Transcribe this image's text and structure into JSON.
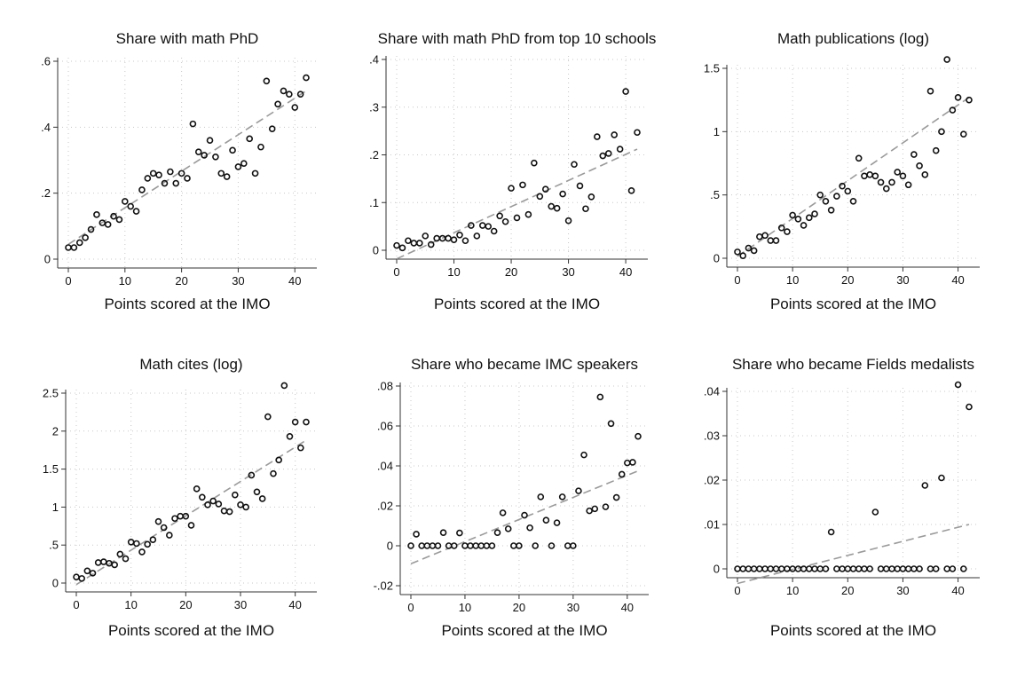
{
  "figure": {
    "colors": {
      "points": "#111111",
      "fit_line": "#9a9a9a",
      "grid": "#c8c8c8"
    }
  },
  "chart_data": [
    {
      "type": "scatter",
      "title": "Share with math PhD",
      "xlabel": "Points scored at the IMO",
      "ylabel": "",
      "xlim": [
        0,
        42
      ],
      "ylim": [
        0,
        0.6
      ],
      "xticks": [
        0,
        10,
        20,
        30,
        40
      ],
      "xtick_labels": [
        "0",
        "10",
        "20",
        "30",
        "40"
      ],
      "yticks": [
        0,
        0.2,
        0.4,
        0.6
      ],
      "ytick_labels": [
        "0",
        ".2",
        ".4",
        ".6"
      ],
      "grid": true,
      "x": [
        0,
        1,
        2,
        3,
        4,
        5,
        6,
        7,
        8,
        9,
        10,
        11,
        12,
        13,
        14,
        15,
        16,
        17,
        18,
        19,
        20,
        21,
        22,
        23,
        24,
        25,
        26,
        27,
        28,
        29,
        30,
        31,
        32,
        33,
        34,
        35,
        36,
        37,
        38,
        39,
        40,
        41,
        42
      ],
      "y": [
        0.035,
        0.035,
        0.05,
        0.065,
        0.09,
        0.135,
        0.11,
        0.105,
        0.13,
        0.12,
        0.175,
        0.16,
        0.145,
        0.21,
        0.245,
        0.26,
        0.255,
        0.23,
        0.265,
        0.23,
        0.26,
        0.245,
        0.41,
        0.325,
        0.315,
        0.36,
        0.31,
        0.26,
        0.25,
        0.33,
        0.28,
        0.29,
        0.365,
        0.26,
        0.34,
        0.54,
        0.395,
        0.47,
        0.51,
        0.5,
        0.46,
        0.5,
        0.55
      ],
      "fit": {
        "x": [
          0,
          42
        ],
        "y": [
          0.045,
          0.51
        ]
      }
    },
    {
      "type": "scatter",
      "title": "Share with math PhD from top 10 schools",
      "xlabel": "Points scored at the IMO",
      "ylabel": "",
      "xlim": [
        0,
        42
      ],
      "ylim": [
        0,
        0.4
      ],
      "xticks": [
        0,
        10,
        20,
        30,
        40
      ],
      "xtick_labels": [
        "0",
        "10",
        "20",
        "30",
        "40"
      ],
      "yticks": [
        0,
        0.1,
        0.2,
        0.3,
        0.4
      ],
      "ytick_labels": [
        "0",
        ".1",
        ".2",
        ".3",
        ".4"
      ],
      "grid": true,
      "x": [
        0,
        1,
        2,
        3,
        4,
        5,
        6,
        7,
        8,
        9,
        10,
        11,
        12,
        13,
        14,
        15,
        16,
        17,
        18,
        19,
        20,
        21,
        22,
        23,
        24,
        25,
        26,
        27,
        28,
        29,
        30,
        31,
        32,
        33,
        34,
        35,
        36,
        37,
        38,
        39,
        40,
        41,
        42
      ],
      "y": [
        0.01,
        0.005,
        0.02,
        0.015,
        0.015,
        0.03,
        0.012,
        0.025,
        0.025,
        0.025,
        0.022,
        0.032,
        0.02,
        0.052,
        0.03,
        0.052,
        0.05,
        0.04,
        0.072,
        0.06,
        0.13,
        0.068,
        0.137,
        0.075,
        0.183,
        0.113,
        0.128,
        0.092,
        0.088,
        0.118,
        0.062,
        0.18,
        0.135,
        0.087,
        0.112,
        0.238,
        0.198,
        0.203,
        0.242,
        0.212,
        0.333,
        0.125,
        0.247
      ],
      "fit": {
        "x": [
          0,
          42
        ],
        "y": [
          -0.018,
          0.212
        ]
      }
    },
    {
      "type": "scatter",
      "title": "Math publications (log)",
      "xlabel": "Points scored at the IMO",
      "ylabel": "",
      "xlim": [
        0,
        42
      ],
      "ylim": [
        0,
        1.5
      ],
      "xticks": [
        0,
        10,
        20,
        30,
        40
      ],
      "xtick_labels": [
        "0",
        "10",
        "20",
        "30",
        "40"
      ],
      "yticks": [
        0,
        0.5,
        1,
        1.5
      ],
      "ytick_labels": [
        "0",
        ".5",
        "1",
        "1.5"
      ],
      "grid": true,
      "x": [
        0,
        1,
        2,
        3,
        4,
        5,
        6,
        7,
        8,
        9,
        10,
        11,
        12,
        13,
        14,
        15,
        16,
        17,
        18,
        19,
        20,
        21,
        22,
        23,
        24,
        25,
        26,
        27,
        28,
        29,
        30,
        31,
        32,
        33,
        34,
        35,
        36,
        37,
        38,
        39,
        40,
        41,
        42
      ],
      "y": [
        0.05,
        0.02,
        0.08,
        0.06,
        0.17,
        0.18,
        0.14,
        0.14,
        0.24,
        0.21,
        0.34,
        0.31,
        0.26,
        0.32,
        0.35,
        0.5,
        0.45,
        0.38,
        0.49,
        0.57,
        0.53,
        0.45,
        0.79,
        0.65,
        0.66,
        0.65,
        0.6,
        0.55,
        0.6,
        0.68,
        0.65,
        0.58,
        0.82,
        0.73,
        0.66,
        1.32,
        0.85,
        1.0,
        1.57,
        1.17,
        1.27,
        0.98,
        1.25
      ],
      "fit": {
        "x": [
          0,
          42
        ],
        "y": [
          0.015,
          1.27
        ]
      }
    },
    {
      "type": "scatter",
      "title": "Math cites (log)",
      "xlabel": "Points scored at the IMO",
      "ylabel": "",
      "xlim": [
        0,
        42
      ],
      "ylim": [
        0,
        2.5
      ],
      "xticks": [
        0,
        10,
        20,
        30,
        40
      ],
      "xtick_labels": [
        "0",
        "10",
        "20",
        "30",
        "40"
      ],
      "yticks": [
        0,
        0.5,
        1,
        1.5,
        2,
        2.5
      ],
      "ytick_labels": [
        "0",
        ".5",
        "1",
        "1.5",
        "2",
        "2.5"
      ],
      "grid": true,
      "x": [
        0,
        1,
        2,
        3,
        4,
        5,
        6,
        7,
        8,
        9,
        10,
        11,
        12,
        13,
        14,
        15,
        16,
        17,
        18,
        19,
        20,
        21,
        22,
        23,
        24,
        25,
        26,
        27,
        28,
        29,
        30,
        31,
        32,
        33,
        34,
        35,
        36,
        37,
        38,
        39,
        40,
        41,
        42
      ],
      "y": [
        0.08,
        0.06,
        0.16,
        0.13,
        0.27,
        0.28,
        0.26,
        0.24,
        0.38,
        0.32,
        0.54,
        0.52,
        0.41,
        0.51,
        0.57,
        0.81,
        0.73,
        0.63,
        0.85,
        0.88,
        0.88,
        0.76,
        1.24,
        1.13,
        1.03,
        1.08,
        1.04,
        0.95,
        0.94,
        1.16,
        1.03,
        1.0,
        1.42,
        1.2,
        1.11,
        2.19,
        1.44,
        1.62,
        2.6,
        1.93,
        2.12,
        1.78,
        2.12
      ],
      "fit": {
        "x": [
          0,
          42
        ],
        "y": [
          -0.02,
          1.88
        ]
      }
    },
    {
      "type": "scatter",
      "title": "Share who became IMC speakers",
      "xlabel": "Points scored at the IMO",
      "ylabel": "",
      "xlim": [
        0,
        42
      ],
      "ylim": [
        -0.02,
        0.08
      ],
      "xticks": [
        0,
        10,
        20,
        30,
        40
      ],
      "xtick_labels": [
        "0",
        "10",
        "20",
        "30",
        "40"
      ],
      "yticks": [
        -0.02,
        0,
        0.02,
        0.04,
        0.06,
        0.08
      ],
      "ytick_labels": [
        "-.02",
        "0",
        ".02",
        ".04",
        ".06",
        ".08"
      ],
      "grid": true,
      "x": [
        0,
        1,
        2,
        3,
        4,
        5,
        6,
        7,
        8,
        9,
        10,
        11,
        12,
        13,
        14,
        15,
        16,
        17,
        18,
        19,
        20,
        21,
        22,
        23,
        24,
        25,
        26,
        27,
        28,
        29,
        30,
        31,
        32,
        33,
        34,
        35,
        36,
        37,
        38,
        39,
        40,
        41,
        42
      ],
      "y": [
        0,
        0.0058,
        0,
        0,
        0,
        0,
        0.0066,
        0,
        0,
        0.0064,
        0,
        0,
        0,
        0,
        0,
        0,
        0.0066,
        0.0165,
        0.0085,
        0,
        0,
        0.0153,
        0.009,
        0,
        0.0245,
        0.0128,
        0,
        0.0115,
        0.0245,
        0,
        0,
        0.0275,
        0.0455,
        0.0175,
        0.0185,
        0.0745,
        0.0195,
        0.0612,
        0.0242,
        0.0358,
        0.0415,
        0.0418,
        0.0548
      ],
      "fit": {
        "x": [
          0,
          42
        ],
        "y": [
          -0.009,
          0.0375
        ]
      }
    },
    {
      "type": "scatter",
      "title": "Share who became Fields medalists",
      "xlabel": "Points scored at the IMO",
      "ylabel": "",
      "xlim": [
        0,
        42
      ],
      "ylim": [
        0,
        0.04
      ],
      "xticks": [
        0,
        10,
        20,
        30,
        40
      ],
      "xtick_labels": [
        "0",
        "10",
        "20",
        "30",
        "40"
      ],
      "yticks": [
        0,
        0.01,
        0.02,
        0.03,
        0.04
      ],
      "ytick_labels": [
        "0",
        ".01",
        ".02",
        ".03",
        ".04"
      ],
      "grid": true,
      "x": [
        0,
        1,
        2,
        3,
        4,
        5,
        6,
        7,
        8,
        9,
        10,
        11,
        12,
        13,
        14,
        15,
        16,
        17,
        18,
        19,
        20,
        21,
        22,
        23,
        24,
        25,
        26,
        27,
        28,
        29,
        30,
        31,
        32,
        33,
        34,
        35,
        36,
        37,
        38,
        39,
        40,
        41,
        42
      ],
      "y": [
        0,
        0,
        0,
        0,
        0,
        0,
        0,
        0,
        0,
        0,
        0,
        0,
        0,
        0,
        0,
        0,
        0,
        0.0083,
        0,
        0,
        0,
        0,
        0,
        0,
        0,
        0.0128,
        0,
        0,
        0,
        0,
        0,
        0,
        0,
        0,
        0.0188,
        0,
        0,
        0.0205,
        0,
        0,
        0.0415,
        0,
        0.0365
      ],
      "fit": {
        "x": [
          0,
          42
        ],
        "y": [
          -0.0033,
          0.01
        ]
      }
    }
  ]
}
